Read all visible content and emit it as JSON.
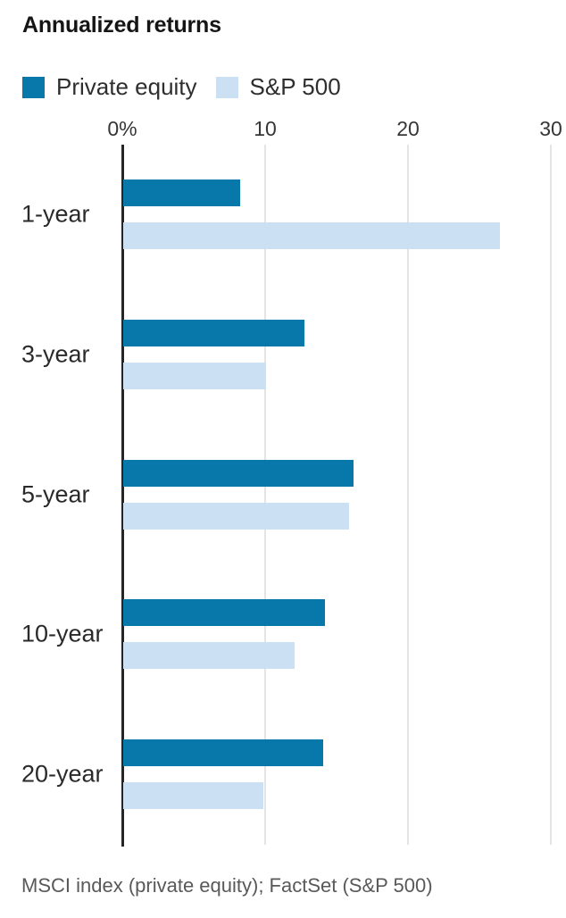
{
  "chart_data": {
    "type": "bar",
    "orientation": "horizontal",
    "title": "Annualized returns",
    "categories": [
      "1-year",
      "3-year",
      "5-year",
      "10-year",
      "20-year"
    ],
    "series": [
      {
        "name": "Private equity",
        "color": "#0878aa",
        "values": [
          8.2,
          12.7,
          16.1,
          14.1,
          14.0
        ]
      },
      {
        "name": "S&P 500",
        "color": "#cce0f3",
        "values": [
          26.4,
          10.0,
          15.8,
          12.0,
          9.8
        ]
      }
    ],
    "x_ticks": [
      {
        "value": 0,
        "label": "0%"
      },
      {
        "value": 10,
        "label": "10"
      },
      {
        "value": 20,
        "label": "20"
      },
      {
        "value": 30,
        "label": "30"
      }
    ],
    "xlim": [
      0,
      31
    ],
    "unit": "percent",
    "grid": "vertical",
    "legend_position": "top",
    "axis_color": "#262626",
    "gridline_color": "#e4e4e4",
    "source": "MSCI index (private equity); FactSet (S&P 500)"
  }
}
